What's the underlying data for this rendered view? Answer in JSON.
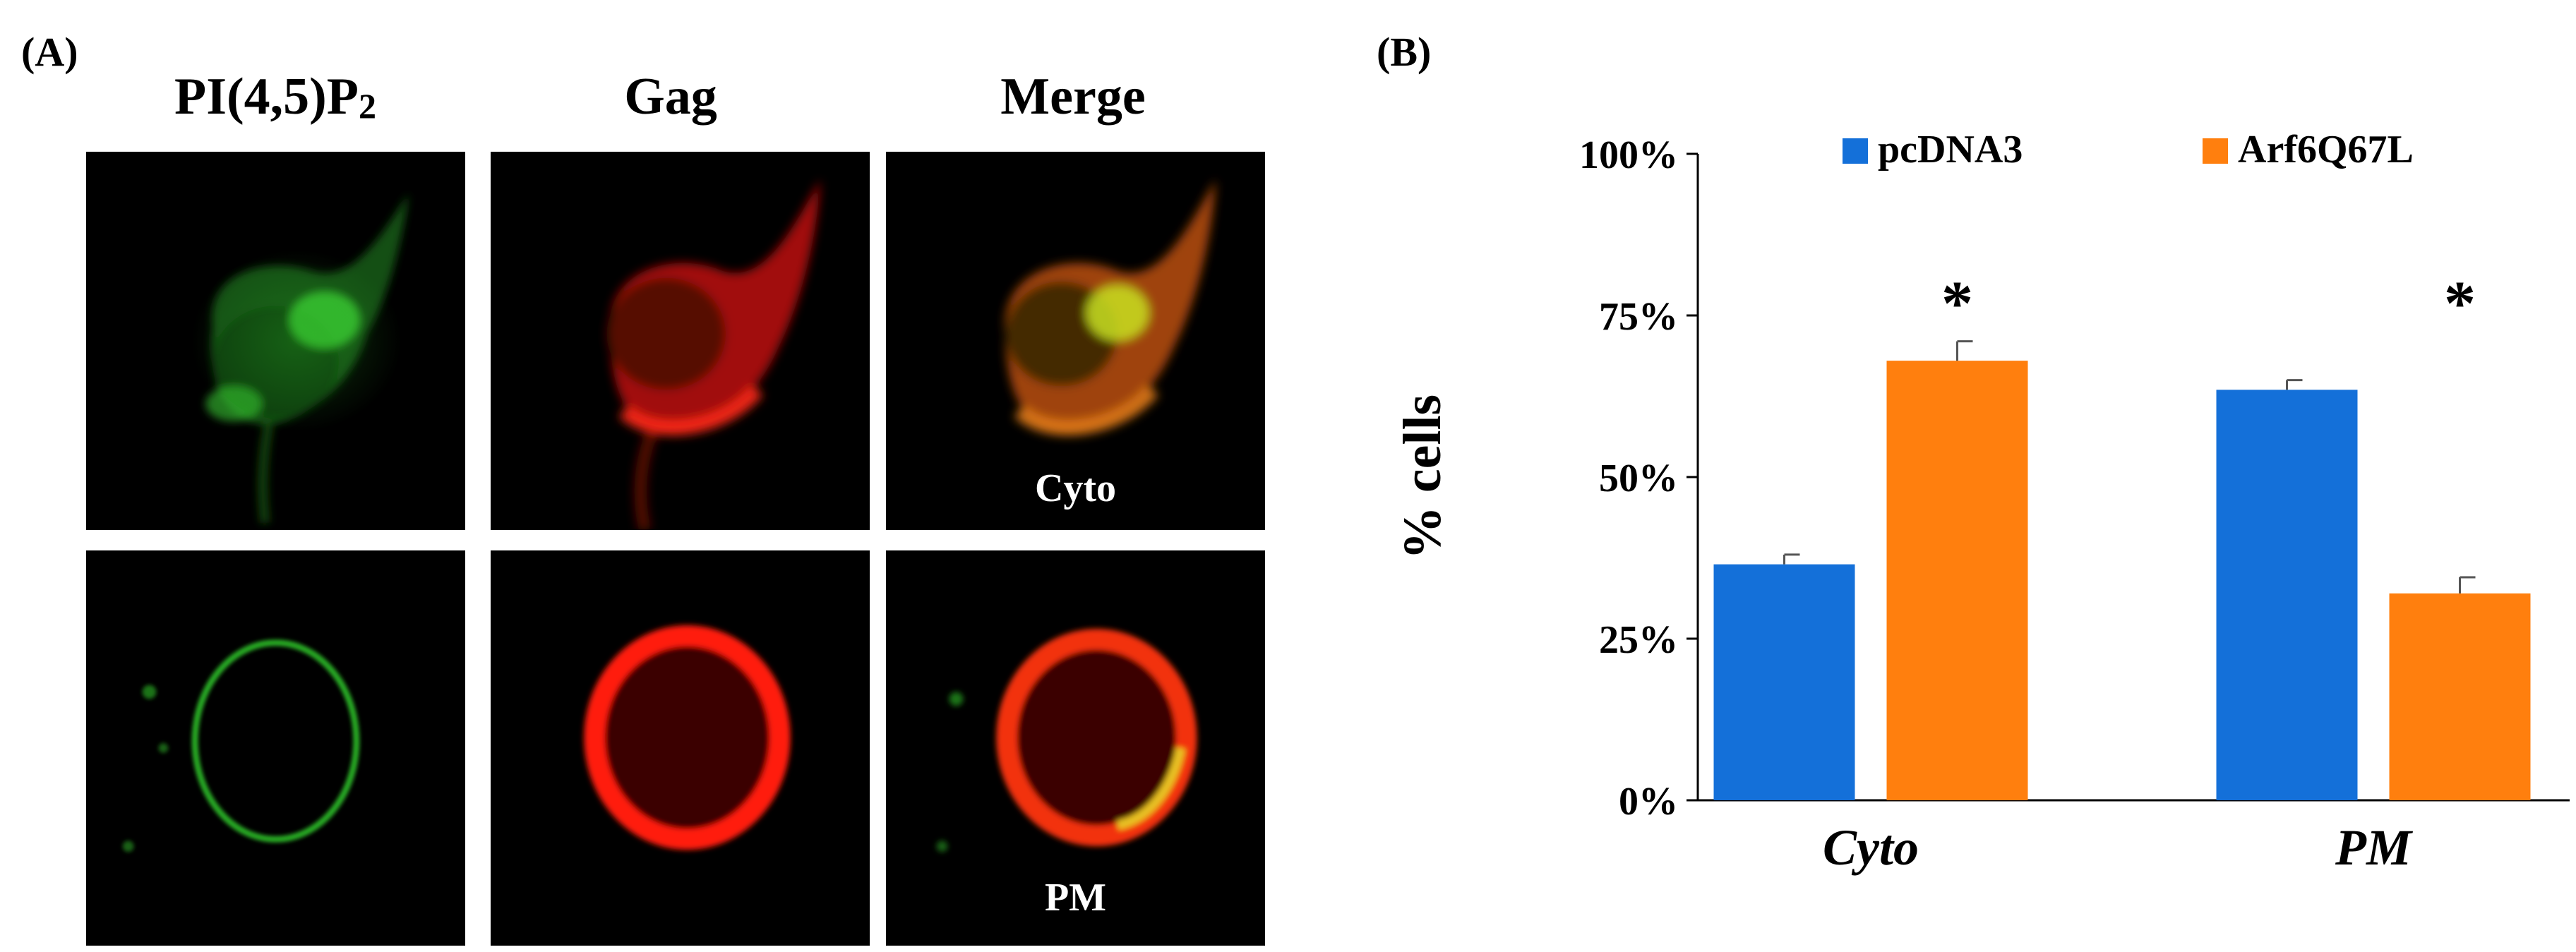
{
  "panel_a": {
    "label": "(A)",
    "columns": [
      "PI(4,5)P",
      "Gag",
      "Merge"
    ],
    "subscript": "2",
    "row_labels": [
      "Cyto",
      "PM"
    ],
    "colors": {
      "pi": "#2fbf2a",
      "gag": "#ff1a0a",
      "merge": "#d9a020"
    }
  },
  "panel_b": {
    "label": "(B)",
    "significance_mark": "*"
  },
  "chart_data": {
    "type": "bar",
    "categories": [
      "Cyto",
      "PM"
    ],
    "series": [
      {
        "name": "pcDNA3",
        "color": "#1470d9",
        "values": [
          36.5,
          63.5
        ],
        "errors": [
          1.5,
          1.5
        ]
      },
      {
        "name": "Arf6Q67L",
        "color": "#ff7f0e",
        "values": [
          68,
          32
        ],
        "errors": [
          3,
          2.5
        ]
      }
    ],
    "title": "",
    "xlabel": "",
    "ylabel": "% cells",
    "ylim": [
      0,
      100
    ],
    "yticks": [
      0,
      25,
      50,
      75,
      100
    ],
    "ytick_labels": [
      "0%",
      "25%",
      "50%",
      "75%",
      "100%"
    ],
    "annotations": [
      "*",
      "*"
    ],
    "legend": "top"
  }
}
